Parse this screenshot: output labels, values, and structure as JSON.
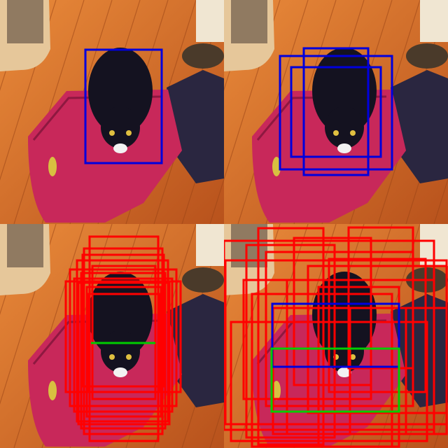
{
  "colors": {
    "floor_light": "#e98a3a",
    "floor_dark": "#b8521c",
    "suitcase": "#c8285a",
    "suitcase_dark": "#8e1840",
    "bag": "#2a2640",
    "cat": "#141220",
    "ground_truth": "#00cc00",
    "prediction": "#0000dd",
    "proposal": "#ff0000"
  },
  "panels": [
    {
      "id": "top-left",
      "boxes": [
        {
          "kind": "prediction",
          "box": [
            122,
            71,
            231,
            233
          ]
        }
      ]
    },
    {
      "id": "top-right",
      "boxes": [
        {
          "kind": "prediction",
          "box": [
            80,
            80,
            240,
            242
          ]
        },
        {
          "kind": "prediction",
          "box": [
            114,
            69,
            206,
            250
          ]
        },
        {
          "kind": "prediction",
          "box": [
            96,
            96,
            224,
            224
          ]
        }
      ]
    },
    {
      "id": "bottom-left",
      "boxes": [
        {
          "kind": "proposal",
          "box": [
            128,
            18,
            226,
            310
          ]
        },
        {
          "kind": "proposal",
          "box": [
            120,
            35,
            232,
            300
          ]
        },
        {
          "kind": "proposal",
          "box": [
            100,
            65,
            252,
            260
          ]
        },
        {
          "kind": "proposal",
          "box": [
            94,
            82,
            258,
            240
          ]
        },
        {
          "kind": "proposal",
          "box": [
            110,
            52,
            240,
            282
          ]
        },
        {
          "kind": "proposal",
          "box": [
            116,
            70,
            236,
            292
          ]
        },
        {
          "kind": "proposal",
          "box": [
            124,
            90,
            230,
            275
          ]
        },
        {
          "kind": "proposal",
          "box": [
            132,
            60,
            222,
            250
          ]
        },
        {
          "kind": "proposal",
          "box": [
            106,
            78,
            246,
            268
          ]
        },
        {
          "kind": "proposal",
          "box": [
            118,
            44,
            234,
            232
          ]
        },
        {
          "kind": "proposal",
          "box": [
            126,
            100,
            228,
            240
          ]
        },
        {
          "kind": "proposal",
          "box": [
            112,
            84,
            242,
            286
          ]
        },
        {
          "kind": "ground_truth",
          "box": [
            130,
            170,
            222,
            170
          ]
        }
      ]
    },
    {
      "id": "bottom-right",
      "boxes": [
        {
          "kind": "proposal",
          "box": [
            49,
            6,
            142,
            315
          ]
        },
        {
          "kind": "proposal",
          "box": [
            178,
            5,
            270,
            206
          ]
        },
        {
          "kind": "proposal",
          "box": [
            32,
            30,
            158,
            305
          ]
        },
        {
          "kind": "proposal",
          "box": [
            0,
            24,
            300,
            294
          ]
        },
        {
          "kind": "proposal",
          "box": [
            2,
            52,
            318,
            286
          ]
        },
        {
          "kind": "proposal",
          "box": [
            60,
            40,
            270,
            260
          ]
        },
        {
          "kind": "proposal",
          "box": [
            90,
            80,
            300,
            300
          ]
        },
        {
          "kind": "proposal",
          "box": [
            120,
            60,
            318,
            270
          ]
        },
        {
          "kind": "proposal",
          "box": [
            40,
            100,
            240,
            318
          ]
        },
        {
          "kind": "proposal",
          "box": [
            150,
            50,
            288,
            240
          ]
        },
        {
          "kind": "proposal",
          "box": [
            70,
            120,
            260,
            300
          ]
        },
        {
          "kind": "proposal",
          "box": [
            28,
            80,
            210,
            250
          ]
        },
        {
          "kind": "proposal",
          "box": [
            180,
            120,
            318,
            300
          ]
        },
        {
          "kind": "proposal",
          "box": [
            100,
            20,
            210,
            230
          ]
        },
        {
          "kind": "proposal",
          "box": [
            10,
            140,
            290,
            310
          ]
        },
        {
          "kind": "proposal",
          "box": [
            135,
            90,
            250,
            318
          ]
        },
        {
          "kind": "prediction",
          "box": [
            69,
            114,
            250,
            204
          ]
        },
        {
          "kind": "ground_truth",
          "box": [
            68,
            178,
            250,
            268
          ]
        }
      ]
    }
  ]
}
